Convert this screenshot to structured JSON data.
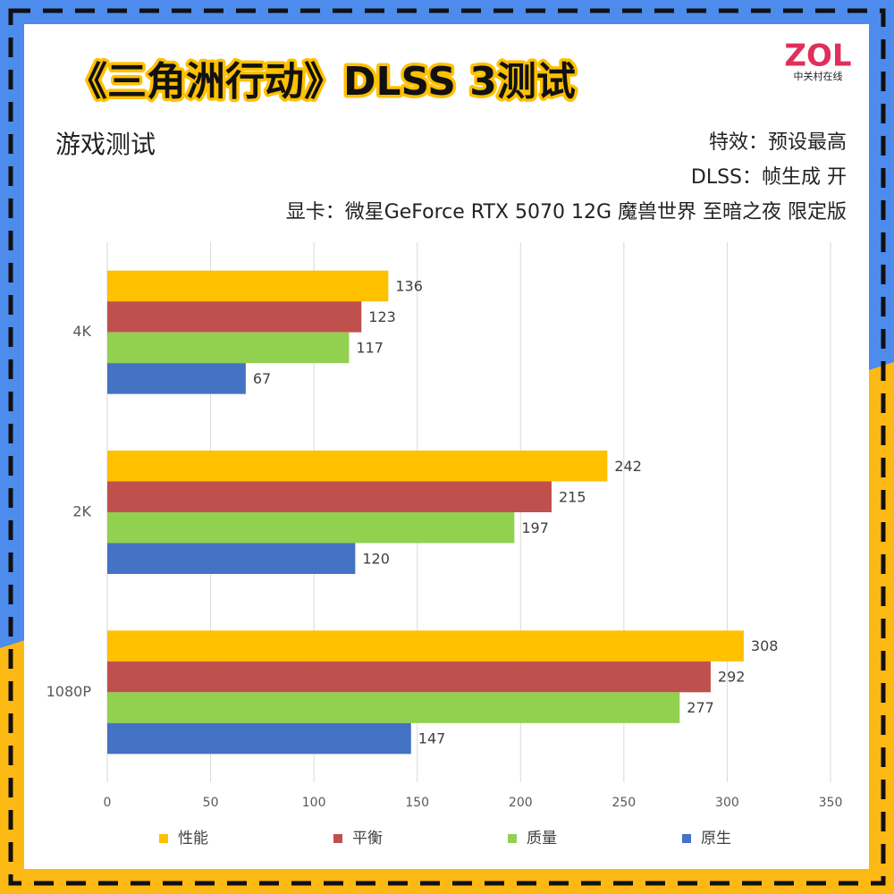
{
  "chart_data": {
    "type": "hbar",
    "title": "《三角洲行动》DLSS 3测试",
    "subtitle": "游戏测试",
    "annotations": [
      "特效：预设最高",
      "DLSS：帧生成 开",
      "显卡：微星GeForce RTX 5070 12G 魔兽世界 至暗之夜 限定版"
    ],
    "categories": [
      "4K",
      "2K",
      "1080P"
    ],
    "series": [
      {
        "name": "性能",
        "color": "#ffc000",
        "values": [
          136,
          242,
          308
        ]
      },
      {
        "name": "平衡",
        "color": "#c0504d",
        "values": [
          123,
          215,
          292
        ]
      },
      {
        "name": "质量",
        "color": "#92d050",
        "values": [
          117,
          197,
          277
        ]
      },
      {
        "name": "原生",
        "color": "#4472c4",
        "values": [
          67,
          120,
          147
        ]
      }
    ],
    "xlim": [
      0,
      350
    ],
    "xticks": [
      0,
      50,
      100,
      150,
      200,
      250,
      300,
      350
    ],
    "grid": true,
    "legend": "bottom"
  },
  "logo": {
    "text": "ZOL",
    "subtext": "中关村在线"
  }
}
